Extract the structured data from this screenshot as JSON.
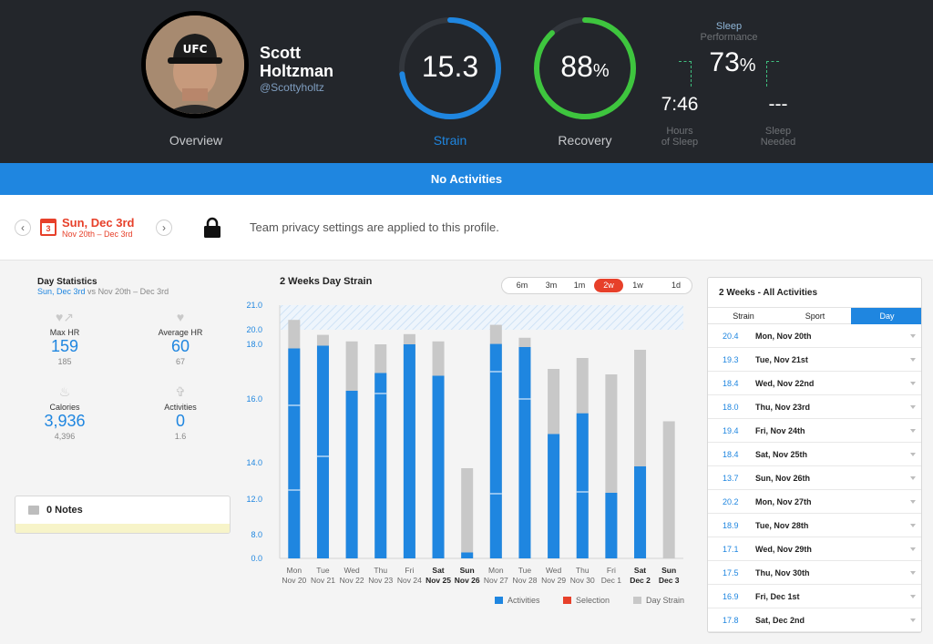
{
  "profile": {
    "name": "Scott Holtzman",
    "handle": "@Scottyholtz",
    "overview_label": "Overview",
    "hat_text": "UFC"
  },
  "strain": {
    "value": "15.3",
    "label": "Strain",
    "level": 0.73,
    "color": "#1f86e0"
  },
  "recovery": {
    "value": "88",
    "unit": "%",
    "label": "Recovery",
    "level": 0.88,
    "color": "#3ec53e"
  },
  "sleep": {
    "title_line1": "Sleep",
    "title_line2": "Performance",
    "performance": "73",
    "unit": "%",
    "hours": "7:46",
    "hours_label_1": "Hours",
    "hours_label_2": "of Sleep",
    "needed": "---",
    "needed_label_1": "Sleep",
    "needed_label_2": "Needed"
  },
  "band": {
    "text": "No Activities"
  },
  "datebar": {
    "cal_day": "3",
    "date": "Sun, Dec 3rd",
    "range": "Nov 20th – Dec 3rd",
    "prev": "‹",
    "next": "›",
    "privacy": "Team privacy settings are applied to this profile."
  },
  "stats": {
    "title": "Day Statistics",
    "sub_day": "Sun, Dec 3rd",
    "sub_vs": "vs",
    "sub_range": "Nov 20th – Dec 3rd",
    "items": [
      {
        "label": "Max HR",
        "value": "159",
        "compare": "185",
        "icon": "heart-arrow-icon"
      },
      {
        "label": "Average HR",
        "value": "60",
        "compare": "67",
        "icon": "heart-icon"
      },
      {
        "label": "Calories",
        "value": "3,936",
        "compare": "4,396",
        "icon": "flame-icon"
      },
      {
        "label": "Activities",
        "value": "0",
        "compare": "1.6",
        "icon": "activity-icon"
      }
    ]
  },
  "notes": {
    "label": "0 Notes"
  },
  "chart_controls": {
    "title": "2 Weeks Day Strain",
    "ranges": [
      "6m",
      "3m",
      "1m",
      "2w",
      "1w",
      "1d"
    ],
    "active_range": "2w"
  },
  "chart_data": {
    "type": "bar",
    "title": "2 Weeks Day Strain",
    "y_ticks": [
      "0.0",
      "8.0",
      "12.0",
      "14.0",
      "16.0",
      "18.0",
      "20.0",
      "21.0"
    ],
    "categories": [
      [
        "Mon",
        "Nov 20"
      ],
      [
        "Tue",
        "Nov 21"
      ],
      [
        "Wed",
        "Nov 22"
      ],
      [
        "Thu",
        "Nov 23"
      ],
      [
        "Fri",
        "Nov 24"
      ],
      [
        "Sat",
        "Nov 25"
      ],
      [
        "Sun",
        "Nov 26"
      ],
      [
        "Mon",
        "Nov 27"
      ],
      [
        "Tue",
        "Nov 28"
      ],
      [
        "Wed",
        "Nov 29"
      ],
      [
        "Thu",
        "Nov 30"
      ],
      [
        "Fri",
        "Dec 1"
      ],
      [
        "Sat",
        "Dec 2"
      ],
      [
        "Sun",
        "Dec 3"
      ]
    ],
    "bold_categories": [
      5,
      6,
      12,
      13
    ],
    "series": [
      {
        "name": "Activities",
        "color": "#1f86e0",
        "values": [
          17.85,
          17.95,
          16.3,
          16.95,
          18.0,
          16.85,
          2.0,
          18.05,
          17.9,
          14.9,
          15.55,
          12.35,
          13.8,
          0
        ]
      },
      {
        "name": "Day Strain",
        "color": "#c8c8c8",
        "values": [
          20.4,
          19.3,
          18.4,
          18.0,
          19.4,
          18.4,
          13.7,
          20.2,
          18.9,
          17.1,
          17.5,
          16.9,
          17.8,
          15.3
        ]
      }
    ],
    "segment_breaks": [
      [
        12.5,
        15.8
      ],
      [
        14.2
      ],
      [],
      [
        16.2
      ],
      [],
      [],
      [],
      [
        12.3,
        17.0
      ],
      [
        16.0
      ],
      [],
      [
        12.4
      ],
      [],
      [],
      []
    ],
    "legend": [
      {
        "name": "Activities",
        "color": "#1f86e0"
      },
      {
        "name": "Selection",
        "color": "#e7402a"
      },
      {
        "name": "Day Strain",
        "color": "#c8c8c8"
      }
    ],
    "legend_position": "bottom-right"
  },
  "activities_panel": {
    "title": "2 Weeks - All Activities",
    "tabs": [
      "Strain",
      "Sport",
      "Day"
    ],
    "active_tab": "Day",
    "rows": [
      {
        "strain": "20.4",
        "date": "Mon, Nov 20th"
      },
      {
        "strain": "19.3",
        "date": "Tue, Nov 21st"
      },
      {
        "strain": "18.4",
        "date": "Wed, Nov 22nd"
      },
      {
        "strain": "18.0",
        "date": "Thu, Nov 23rd"
      },
      {
        "strain": "19.4",
        "date": "Fri, Nov 24th"
      },
      {
        "strain": "18.4",
        "date": "Sat, Nov 25th"
      },
      {
        "strain": "13.7",
        "date": "Sun, Nov 26th"
      },
      {
        "strain": "20.2",
        "date": "Mon, Nov 27th"
      },
      {
        "strain": "18.9",
        "date": "Tue, Nov 28th"
      },
      {
        "strain": "17.1",
        "date": "Wed, Nov 29th"
      },
      {
        "strain": "17.5",
        "date": "Thu, Nov 30th"
      },
      {
        "strain": "16.9",
        "date": "Fri, Dec 1st"
      },
      {
        "strain": "17.8",
        "date": "Sat, Dec 2nd"
      }
    ]
  }
}
